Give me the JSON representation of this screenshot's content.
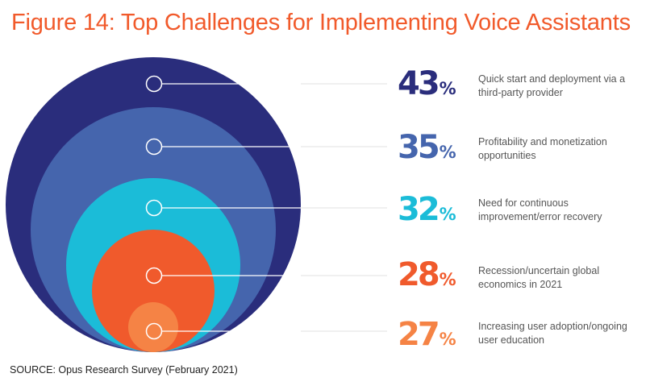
{
  "title": "Figure 14: Top Challenges for Implementing Voice Assistants",
  "source": "SOURCE: Opus Research Survey (February 2021)",
  "chart_data": {
    "type": "nested-circles",
    "title": "Figure 14: Top Challenges for Implementing Voice Assistants",
    "unit": "%",
    "items": [
      {
        "value": 43,
        "label": "Quick start and deployment via a third-party provider",
        "color": "#2a2d7c"
      },
      {
        "value": 35,
        "label": "Profitability and monetization opportunities",
        "color": "#4565ad"
      },
      {
        "value": 32,
        "label": "Need for continuous improvement/error recovery",
        "color": "#1bbcd8"
      },
      {
        "value": 28,
        "label": "Recession/uncertain global economics in 2021",
        "color": "#f05a2c"
      },
      {
        "value": 27,
        "label": "Increasing user adoption/ongoing user education",
        "color": "#f58345"
      }
    ]
  }
}
